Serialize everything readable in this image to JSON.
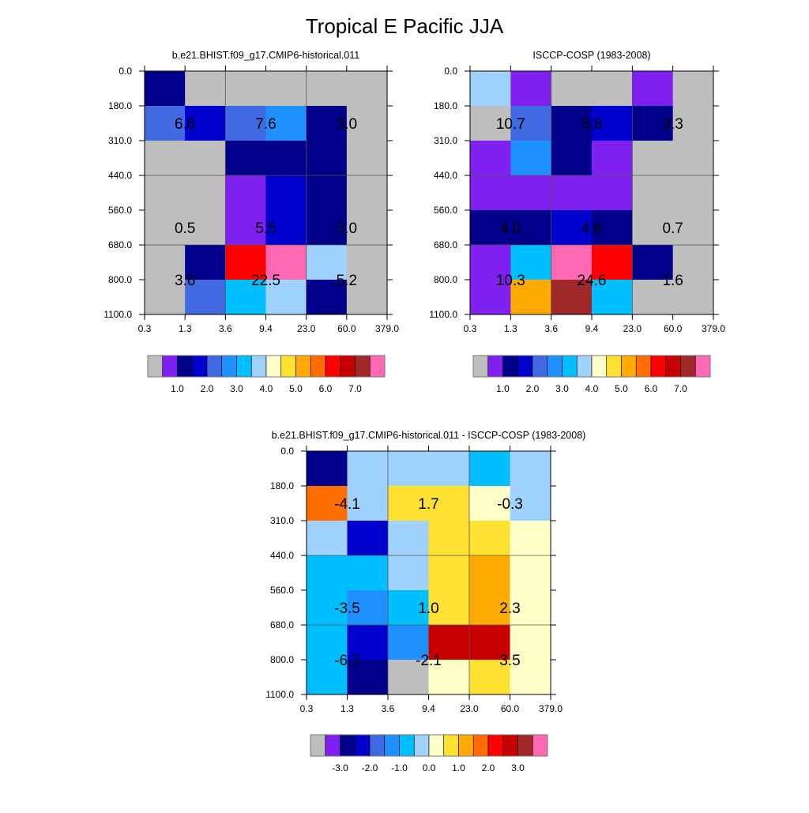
{
  "title": "Tropical E Pacific JJA",
  "chart_data": [
    {
      "type": "heatmap",
      "title": "b.e21.BHIST.f09_g17.CMIP6-historical.011",
      "x_tick_labels": [
        "0.3",
        "1.3",
        "3.6",
        "9.4",
        "23.0",
        "60.0",
        "379.0"
      ],
      "y_tick_labels": [
        "0.0",
        "180.0",
        "310.0",
        "440.0",
        "560.0",
        "680.0",
        "800.0",
        "1100.0"
      ],
      "levels": [
        0.5,
        1.0,
        1.5,
        2.0,
        2.5,
        3.0,
        3.5,
        4.0,
        4.5,
        5.0,
        5.5,
        6.0,
        6.5,
        7.0,
        7.5
      ],
      "colorbar_labels": [
        "1.0",
        "2.0",
        "3.0",
        "4.0",
        "5.0",
        "6.0",
        "7.0"
      ],
      "values": [
        [
          1.25,
          0.25,
          0.25,
          0.25,
          0.25,
          0.25
        ],
        [
          2.25,
          1.75,
          2.25,
          2.75,
          1.25,
          0.25
        ],
        [
          0.25,
          0.25,
          1.25,
          1.25,
          1.25,
          0.25
        ],
        [
          0.25,
          0.25,
          0.75,
          1.75,
          1.25,
          0.25
        ],
        [
          0.25,
          0.25,
          0.75,
          1.75,
          1.25,
          0.25
        ],
        [
          0.25,
          1.25,
          6.25,
          7.75,
          3.75,
          0.25
        ],
        [
          0.25,
          2.25,
          3.25,
          3.75,
          1.25,
          0.25
        ]
      ],
      "annotations": [
        [
          "6.6",
          "7.6",
          "3.0"
        ],
        [
          "0.5",
          "5.5",
          "3.0"
        ],
        [
          "3.6",
          "22.5",
          "5.2"
        ]
      ]
    },
    {
      "type": "heatmap",
      "title": "ISCCP-COSP (1983-2008)",
      "x_tick_labels": [
        "0.3",
        "1.3",
        "3.6",
        "9.4",
        "23.0",
        "60.0",
        "379.0"
      ],
      "y_tick_labels": [
        "0.0",
        "180.0",
        "310.0",
        "440.0",
        "560.0",
        "680.0",
        "800.0",
        "1100.0"
      ],
      "levels": [
        0.5,
        1.0,
        1.5,
        2.0,
        2.5,
        3.0,
        3.5,
        4.0,
        4.5,
        5.0,
        5.5,
        6.0,
        6.5,
        7.0,
        7.5
      ],
      "colorbar_labels": [
        "1.0",
        "2.0",
        "3.0",
        "4.0",
        "5.0",
        "6.0",
        "7.0"
      ],
      "values": [
        [
          3.75,
          0.75,
          0.25,
          0.25,
          0.75,
          0.25
        ],
        [
          0.25,
          2.25,
          1.25,
          1.75,
          1.25,
          0.25
        ],
        [
          0.75,
          2.75,
          1.25,
          0.75,
          0.25,
          0.25
        ],
        [
          0.75,
          0.75,
          0.75,
          0.75,
          0.25,
          0.25
        ],
        [
          1.25,
          1.25,
          1.75,
          1.25,
          0.25,
          0.25
        ],
        [
          0.75,
          3.25,
          7.75,
          6.25,
          1.25,
          0.25
        ],
        [
          0.75,
          5.25,
          7.25,
          3.25,
          0.25,
          0.25
        ]
      ],
      "annotations": [
        [
          "10.7",
          "5.8",
          "3.3"
        ],
        [
          "4.0",
          "4.6",
          "0.7"
        ],
        [
          "10.3",
          "24.6",
          "1.6"
        ]
      ]
    },
    {
      "type": "heatmap",
      "title": "b.e21.BHIST.f09_g17.CMIP6-historical.011 - ISCCP-COSP (1983-2008)",
      "x_tick_labels": [
        "0.3",
        "1.3",
        "3.6",
        "9.4",
        "23.0",
        "60.0",
        "379.0"
      ],
      "y_tick_labels": [
        "0.0",
        "180.0",
        "310.0",
        "440.0",
        "560.0",
        "680.0",
        "800.0",
        "1100.0"
      ],
      "levels": [
        -3.5,
        -3.0,
        -2.5,
        -2.0,
        -1.5,
        -1.0,
        -0.5,
        0.0,
        0.5,
        1.0,
        1.5,
        2.0,
        2.5,
        3.0,
        3.5
      ],
      "colorbar_labels": [
        "-3.0",
        "-2.0",
        "-1.0",
        "0.0",
        "1.0",
        "2.0",
        "3.0"
      ],
      "values": [
        [
          -2.75,
          -0.25,
          -0.25,
          -0.25,
          -0.75,
          -0.25
        ],
        [
          1.75,
          -0.25,
          0.75,
          0.75,
          0.25,
          -0.25
        ],
        [
          -0.25,
          -2.25,
          -0.25,
          0.75,
          0.75,
          0.25
        ],
        [
          -0.75,
          -0.75,
          -0.25,
          0.75,
          1.25,
          0.25
        ],
        [
          -0.75,
          -1.25,
          -0.75,
          0.75,
          1.25,
          0.25
        ],
        [
          -0.75,
          -2.25,
          -1.25,
          2.75,
          2.75,
          0.25
        ],
        [
          -0.75,
          -2.75,
          -3.75,
          0.25,
          0.75,
          0.25
        ]
      ],
      "annotations": [
        [
          "-4.1",
          "1.7",
          "-0.3"
        ],
        [
          "-3.5",
          "1.0",
          "2.3"
        ],
        [
          "-6.7",
          "-2.1",
          "3.5"
        ]
      ]
    }
  ],
  "colors": [
    "#bebebe",
    "#8020f0",
    "#00008b",
    "#0000cd",
    "#4169e1",
    "#1e90ff",
    "#00bfff",
    "#a0d2ff",
    "#ffffc8",
    "#ffe132",
    "#ffaa00",
    "#ff6e00",
    "#ff0000",
    "#c80000",
    "#a02828",
    "#ff69b4"
  ],
  "grid_color": "#555555"
}
